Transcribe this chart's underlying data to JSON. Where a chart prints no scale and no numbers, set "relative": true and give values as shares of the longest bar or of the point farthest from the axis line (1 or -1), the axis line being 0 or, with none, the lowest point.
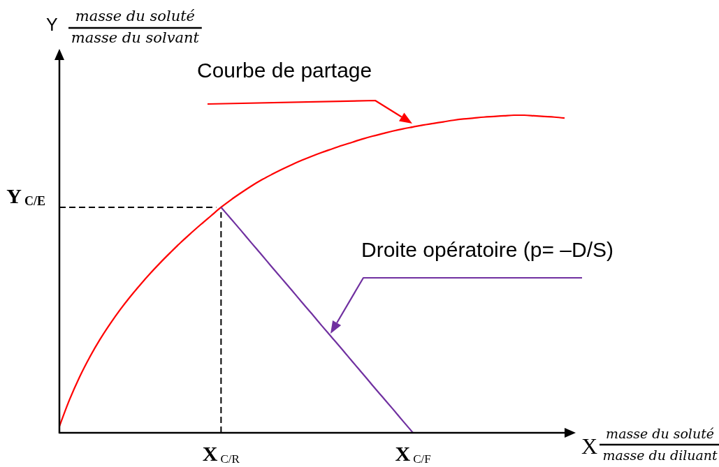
{
  "chart_data": {
    "type": "line",
    "relative": true,
    "xlabel": "X masse du soluté\nmasse du diluant",
    "ylabel": "Y masse du soluté\nmasse du solvant",
    "categories": [
      null,
      null,
      null,
      null,
      null,
      null,
      null,
      null,
      null,
      null,
      null,
      null,
      null,
      null,
      null,
      null,
      "X$_{C/R}$",
      null,
      null,
      null,
      null,
      null,
      null,
      null,
      null,
      null,
      null,
      null,
      null,
      null,
      null,
      null,
      null,
      null,
      null,
      "X$_{C/F}$",
      null,
      null,
      null,
      null,
      null,
      null,
      null,
      null,
      null,
      null,
      null,
      null,
      null,
      null,
      null
    ],
    "series": [
      {
        "color": "#ff0000",
        "values": [
          0.02,
          0.104,
          0.176,
          0.238,
          0.293,
          0.342,
          0.387,
          0.428,
          0.466,
          0.502,
          0.536,
          0.568,
          0.599,
          0.628,
          0.656,
          0.683,
          0.71,
          0.734,
          0.756,
          0.777,
          0.796,
          0.813,
          0.829,
          0.844,
          0.858,
          0.871,
          0.883,
          0.894,
          0.905,
          0.915,
          0.925,
          0.934,
          0.942,
          0.95,
          0.957,
          0.963,
          0.969,
          0.974,
          0.979,
          0.984,
          0.988,
          0.991,
          0.994,
          0.996,
          0.998,
          1,
          1,
          0.998,
          0.996,
          0.994,
          0.991
        ]
      },
      {
        "color": "#7030a0",
        "values": [
          null,
          null,
          null,
          null,
          null,
          null,
          null,
          null,
          null,
          null,
          null,
          null,
          null,
          null,
          null,
          null,
          0.71,
          0.673,
          0.636,
          0.598,
          0.561,
          0.523,
          0.486,
          0.449,
          0.411,
          0.374,
          0.336,
          0.299,
          0.262,
          0.224,
          0.187,
          0.149,
          0.112,
          0.075,
          0.037,
          0,
          null,
          null,
          null,
          null,
          null,
          null,
          null,
          null,
          null,
          null,
          null,
          null,
          null,
          null,
          null
        ]
      }
    ],
    "ref_lines": [
      {
        "axis": "y",
        "value": 0.71,
        "label": "Y$_{C/E}$",
        "color": "#000000",
        "line_style": "dashed"
      },
      {
        "axis": "x",
        "value": "X$_{C/R}$",
        "color": "#000000",
        "line_style": "dashed"
      }
    ],
    "annotations": [
      "Courbe de partage",
      "Droite opératoire (p= –D/S)"
    ]
  }
}
